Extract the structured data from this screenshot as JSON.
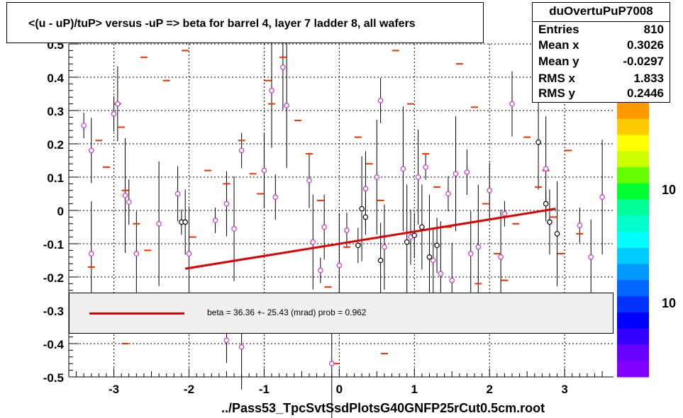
{
  "chart_data": {
    "type": "scatter",
    "title": "<(u - uP)/tuP> versus  -uP => beta for barrel 4, layer 7 ladder 8, all wafers",
    "xlabel": "../Pass53_TpcSvtSsdPlotsG40GNFP25rCut0.5cm.root",
    "ylabel": "",
    "xlim": [
      -3.6,
      3.65
    ],
    "ylim": [
      -0.5,
      0.5
    ],
    "x_ticks": [
      "-3",
      "-2",
      "-1",
      "0",
      "1",
      "2",
      "3"
    ],
    "x_tick_values": [
      -3,
      -2,
      -1,
      0,
      1,
      2,
      3
    ],
    "y_ticks": [
      "-0.5",
      "-0.4",
      "-0.3",
      "-0.2",
      "-0.1",
      "0",
      "0.1",
      "0.2",
      "0.3",
      "0.4",
      "0.5"
    ],
    "y_tick_values": [
      -0.5,
      -0.4,
      -0.3,
      -0.2,
      -0.1,
      0,
      0.1,
      0.2,
      0.3,
      0.4,
      0.5
    ],
    "grid": true,
    "fit_line": {
      "x": [
        -2.05,
        2.88
      ],
      "y": [
        -0.175,
        0.005
      ],
      "color": "#e00000"
    },
    "legend": {
      "label": "beta =   36.36 +- 25.43 (mrad) prob = 0.962"
    },
    "series": [
      {
        "marker": "dash",
        "color": "#ee3300",
        "points": [
          [
            -2.95,
            0.32
          ],
          [
            -2.9,
            0.25
          ],
          [
            -2.6,
            0.46
          ],
          [
            -2.3,
            0.39
          ],
          [
            -2.05,
            0.48
          ],
          [
            -3.2,
            0.21
          ],
          [
            -3.1,
            0.13
          ],
          [
            -2.85,
            0.06
          ],
          [
            -2.7,
            -0.04
          ],
          [
            -2.55,
            -0.12
          ],
          [
            -3.3,
            -0.17
          ],
          [
            -2.85,
            -0.4
          ],
          [
            -1.95,
            -0.08
          ],
          [
            -1.75,
            0.12
          ],
          [
            -1.5,
            0.08
          ],
          [
            -1.3,
            0.21
          ],
          [
            -1.15,
            0.11
          ],
          [
            -1.05,
            0.05
          ],
          [
            -0.95,
            0.39
          ],
          [
            -0.9,
            0.32
          ],
          [
            -0.75,
            0.46
          ],
          [
            -0.55,
            0.27
          ],
          [
            -0.4,
            0.17
          ],
          [
            -0.25,
            0.03
          ],
          [
            -0.15,
            -0.23
          ],
          [
            0.1,
            -0.11
          ],
          [
            0.25,
            0.22
          ],
          [
            0.4,
            0.14
          ],
          [
            0.55,
            0.03
          ],
          [
            0.75,
            0.48
          ],
          [
            0.95,
            0.32
          ],
          [
            1.15,
            0.17
          ],
          [
            1.3,
            0.07
          ],
          [
            1.45,
            -0.05
          ],
          [
            1.6,
            0.44
          ],
          [
            1.8,
            0.31
          ],
          [
            1.95,
            0.02
          ],
          [
            2.1,
            -0.13
          ],
          [
            2.2,
            -0.21
          ],
          [
            2.35,
            -0.04
          ],
          [
            2.5,
            0.22
          ],
          [
            2.65,
            0.07
          ],
          [
            2.75,
            0.12
          ],
          [
            2.85,
            -0.02
          ],
          [
            3.05,
            0.18
          ],
          [
            3.2,
            -0.07
          ],
          [
            2.95,
            -0.13
          ],
          [
            1.85,
            -0.22
          ],
          [
            0.6,
            -0.43
          ],
          [
            -0.05,
            -0.46
          ]
        ]
      },
      {
        "marker": "circle",
        "color": "#cc33cc",
        "points": [
          [
            -3.4,
            0.255
          ],
          [
            -3.3,
            0.18
          ],
          [
            -3.3,
            -0.13
          ],
          [
            -3.0,
            0.29
          ],
          [
            -2.95,
            0.32
          ],
          [
            -2.85,
            0.045
          ],
          [
            -2.8,
            0.025
          ],
          [
            -2.7,
            -0.13
          ],
          [
            -2.4,
            -0.04
          ],
          [
            -2.15,
            0.05
          ],
          [
            -2.0,
            -0.13
          ],
          [
            -1.65,
            -0.03
          ],
          [
            -1.5,
            0.02
          ],
          [
            -1.4,
            -0.055
          ],
          [
            -1.3,
            0.18
          ],
          [
            -1.0,
            0.12
          ],
          [
            -0.9,
            0.36
          ],
          [
            -0.85,
            0.04
          ],
          [
            -0.75,
            0.43
          ],
          [
            -0.7,
            0.315
          ],
          [
            -0.4,
            0.09
          ],
          [
            -0.35,
            -0.095
          ],
          [
            -0.25,
            -0.18
          ],
          [
            -0.2,
            -0.05
          ],
          [
            0.0,
            -0.165
          ],
          [
            0.1,
            -0.06
          ],
          [
            0.35,
            0.065
          ],
          [
            0.5,
            0.1
          ],
          [
            0.55,
            0.33
          ],
          [
            0.6,
            -0.11
          ],
          [
            0.85,
            0.125
          ],
          [
            0.95,
            -0.08
          ],
          [
            1.05,
            0.1
          ],
          [
            1.15,
            0.13
          ],
          [
            1.25,
            -0.15
          ],
          [
            1.35,
            -0.19
          ],
          [
            1.45,
            0.05
          ],
          [
            1.5,
            -0.21
          ],
          [
            1.55,
            0.11
          ],
          [
            1.7,
            0.115
          ],
          [
            1.75,
            -0.13
          ],
          [
            1.85,
            -0.11
          ],
          [
            2.0,
            0.06
          ],
          [
            2.15,
            -0.14
          ],
          [
            2.2,
            -0.01
          ],
          [
            2.3,
            0.32
          ],
          [
            2.75,
            0.125
          ],
          [
            3.2,
            -0.045
          ],
          [
            3.35,
            -0.14
          ],
          [
            3.5,
            0.04
          ],
          [
            -1.5,
            -0.39
          ],
          [
            -1.3,
            -0.41
          ],
          [
            -0.1,
            -0.46
          ]
        ]
      },
      {
        "marker": "circle",
        "color": "#000000",
        "points": [
          [
            -2.1,
            -0.035
          ],
          [
            -2.05,
            -0.035
          ],
          [
            0.3,
            0.005
          ],
          [
            0.35,
            -0.02
          ],
          [
            0.55,
            -0.15
          ],
          [
            0.9,
            -0.095
          ],
          [
            1.0,
            -0.075
          ],
          [
            1.1,
            -0.05
          ],
          [
            1.2,
            -0.14
          ],
          [
            1.3,
            -0.105
          ],
          [
            2.65,
            0.205
          ],
          [
            2.75,
            0.02
          ],
          [
            2.8,
            -0.035
          ],
          [
            2.9,
            -0.07
          ],
          [
            0.25,
            -0.105
          ]
        ]
      }
    ]
  },
  "stats": {
    "name": "duOvertuPuP7008",
    "rows": [
      {
        "label": "Entries",
        "value": "810"
      },
      {
        "label": "Mean x",
        "value": "0.3026"
      },
      {
        "label": "Mean y",
        "value": "-0.0297"
      },
      {
        "label": "RMS x",
        "value": "1.833"
      },
      {
        "label": "RMS y",
        "value": "0.2446"
      }
    ]
  },
  "colorbar": {
    "labels": [
      "10",
      "10"
    ],
    "colors": [
      "#ff9900",
      "#ffcc00",
      "#ffff00",
      "#ccff00",
      "#66ff00",
      "#00ff33",
      "#00ff99",
      "#00ffcc",
      "#00ffff",
      "#00ccff",
      "#0099ff",
      "#0066ff",
      "#0033ff",
      "#0000ff",
      "#3300ff",
      "#6600ff",
      "#7f00ff"
    ]
  }
}
